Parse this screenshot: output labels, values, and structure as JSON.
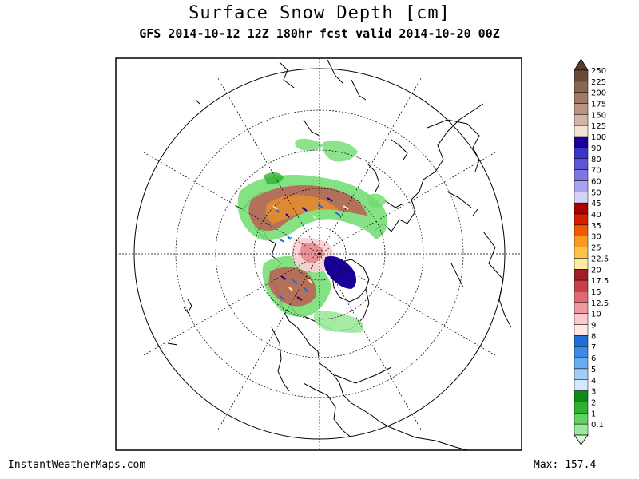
{
  "title": "Surface Snow Depth [cm]",
  "subtitle": "GFS 2014-10-12 12Z 180hr fcst valid 2014-10-20 00Z",
  "credit": "InstantWeatherMaps.com",
  "max_label": "Max:",
  "max_value": "157.4",
  "legend": {
    "top_color": "#5c3a2e",
    "items": [
      {
        "label": "250",
        "color": "#6b4a3c"
      },
      {
        "label": "225",
        "color": "#8a6554"
      },
      {
        "label": "200",
        "color": "#a07a6a"
      },
      {
        "label": "175",
        "color": "#b99385"
      },
      {
        "label": "150",
        "color": "#d3b3a6"
      },
      {
        "label": "125",
        "color": "#f3e2d8"
      },
      {
        "label": "100",
        "color": "#1a0099"
      },
      {
        "label": "90",
        "color": "#3d33c7"
      },
      {
        "label": "80",
        "color": "#5e55d9"
      },
      {
        "label": "70",
        "color": "#7d77e3"
      },
      {
        "label": "60",
        "color": "#a7a3ee"
      },
      {
        "label": "50",
        "color": "#d5d2f7"
      },
      {
        "label": "45",
        "color": "#a80000"
      },
      {
        "label": "40",
        "color": "#d71e00"
      },
      {
        "label": "35",
        "color": "#f05a00"
      },
      {
        "label": "30",
        "color": "#fa9a1e"
      },
      {
        "label": "25",
        "color": "#ffc24a"
      },
      {
        "label": "22.5",
        "color": "#ffeea0"
      },
      {
        "label": "20",
        "color": "#a31d27"
      },
      {
        "label": "17.5",
        "color": "#c8404a"
      },
      {
        "label": "15",
        "color": "#e06a70"
      },
      {
        "label": "12.5",
        "color": "#ef9aa0"
      },
      {
        "label": "10",
        "color": "#fbc8cb"
      },
      {
        "label": "9",
        "color": "#ffe7e8"
      },
      {
        "label": "8",
        "color": "#1f6fd6"
      },
      {
        "label": "7",
        "color": "#3b8ae6"
      },
      {
        "label": "6",
        "color": "#6aaaf0"
      },
      {
        "label": "5",
        "color": "#a2cdf6"
      },
      {
        "label": "4",
        "color": "#d4eafc"
      },
      {
        "label": "3",
        "color": "#0b8a17"
      },
      {
        "label": "2",
        "color": "#2fb12f"
      },
      {
        "label": "1",
        "color": "#5fd45f"
      },
      {
        "label": "0.1",
        "color": "#9be99b"
      }
    ],
    "bottom_color": "#dcfadc"
  }
}
